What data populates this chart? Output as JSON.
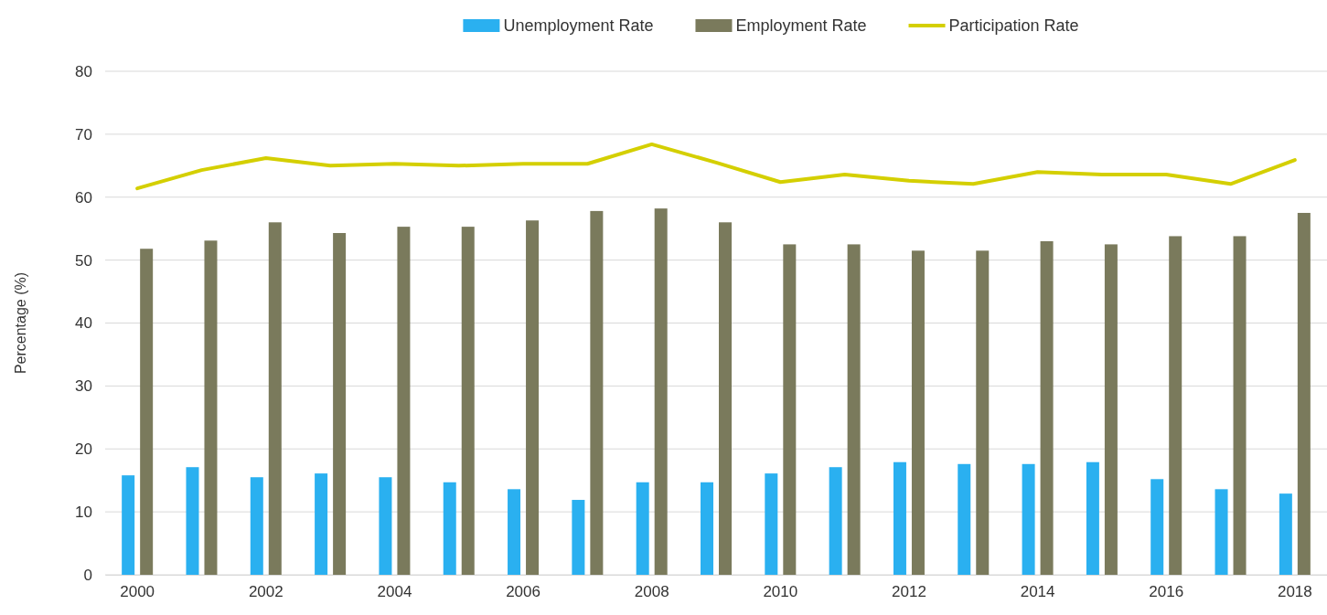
{
  "chart_data": {
    "type": "bar",
    "ylabel": "Percentage (%)",
    "categories": [
      "2000",
      null,
      "2002",
      null,
      "2004",
      null,
      "2006",
      null,
      "2008",
      null,
      "2010",
      null,
      "2012",
      null,
      "2014",
      null,
      "2016",
      null,
      "2018"
    ],
    "series": [
      {
        "name": "Unemployment Rate",
        "color": "#2ab0f0",
        "values": [
          15.8,
          17.1,
          15.5,
          16.1,
          15.5,
          14.7,
          13.6,
          11.9,
          14.7,
          14.7,
          16.1,
          17.1,
          17.9,
          17.6,
          17.6,
          17.9,
          15.2,
          13.6,
          12.9
        ]
      },
      {
        "name": "Employment Rate",
        "color": "#7a7a5c",
        "values": [
          51.8,
          53.1,
          56.0,
          54.3,
          55.3,
          55.3,
          56.3,
          57.8,
          58.2,
          56.0,
          52.5,
          52.5,
          51.5,
          51.5,
          53.0,
          52.5,
          53.8,
          53.8,
          57.5
        ]
      },
      {
        "name": "Participation Rate",
        "type": "line",
        "color": "#d4cf00",
        "values": [
          61.4,
          64.3,
          66.2,
          65.0,
          65.3,
          65.0,
          65.3,
          65.3,
          68.4,
          65.5,
          62.4,
          63.6,
          62.6,
          62.1,
          64.0,
          63.6,
          63.6,
          62.1,
          65.9
        ]
      }
    ],
    "ylim": [
      0,
      80
    ],
    "yticks": [
      0,
      10,
      20,
      30,
      40,
      50,
      60,
      70,
      80
    ],
    "grid": "y",
    "legend": "top",
    "marker": "none",
    "line_style": "solid"
  }
}
